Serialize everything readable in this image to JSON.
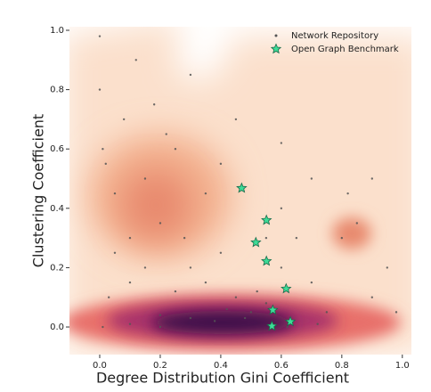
{
  "chart_data": {
    "type": "scatter",
    "xlabel": "Degree Distribution Gini Coefficient",
    "ylabel": "Clustering Coefficient",
    "xlim": [
      -0.1,
      1.03
    ],
    "ylim": [
      -0.093,
      1.012
    ],
    "xticks": [
      {
        "value": 0,
        "label": "0.0"
      },
      {
        "value": 0.2,
        "label": "0.2"
      },
      {
        "value": 0.4,
        "label": "0.4"
      },
      {
        "value": 0.6,
        "label": "0.6"
      },
      {
        "value": 0.8,
        "label": "0.8"
      },
      {
        "value": 1,
        "label": "1.0"
      }
    ],
    "yticks": [
      {
        "value": 0,
        "label": "0.0"
      },
      {
        "value": 0.2,
        "label": "0.2"
      },
      {
        "value": 0.4,
        "label": "0.4"
      },
      {
        "value": 0.6,
        "label": "0.6"
      },
      {
        "value": 0.8,
        "label": "0.8"
      },
      {
        "value": 1,
        "label": "1.0"
      }
    ],
    "legend": "upper right",
    "series": [
      {
        "name": "Network Repository",
        "color": "#555555",
        "marker": "dot",
        "x": [
          0.0,
          0.0,
          0.01,
          0.02,
          0.05,
          0.1,
          0.15,
          0.2,
          0.25,
          0.3,
          0.35,
          0.4,
          0.45,
          0.5,
          0.55,
          0.6,
          0.7,
          0.75,
          0.8,
          0.85,
          0.9,
          0.95,
          0.12,
          0.18,
          0.3,
          0.45,
          0.6,
          0.7,
          0.82,
          0.05,
          0.03,
          0.2,
          0.3,
          0.38,
          0.42,
          0.48,
          0.25,
          0.15,
          0.6,
          0.35,
          0.22,
          0.08,
          0.1,
          0.65,
          0.9,
          0.98,
          0.55,
          0.4,
          0.28,
          0.72,
          0.01,
          0.1,
          0.2,
          0.62,
          0.52
        ],
        "y": [
          0.98,
          0.8,
          0.6,
          0.55,
          0.45,
          0.3,
          0.5,
          0.35,
          0.6,
          0.2,
          0.15,
          0.25,
          0.1,
          0.05,
          0.08,
          0.2,
          0.15,
          0.05,
          0.3,
          0.35,
          0.1,
          0.2,
          0.9,
          0.75,
          0.85,
          0.7,
          0.62,
          0.5,
          0.45,
          0.25,
          0.1,
          0.04,
          0.03,
          0.02,
          0.06,
          0.03,
          0.12,
          0.2,
          0.4,
          0.45,
          0.65,
          0.7,
          0.15,
          0.3,
          0.5,
          0.05,
          0.3,
          0.55,
          0.3,
          0.01,
          0.0,
          0.01,
          0.0,
          0.0,
          0.12
        ]
      },
      {
        "name": "Open Graph Benchmark",
        "color": "#3ddc97",
        "marker": "star",
        "x": [
          0.469,
          0.551,
          0.516,
          0.551,
          0.616,
          0.572,
          0.63,
          0.569
        ],
        "y": [
          0.468,
          0.36,
          0.285,
          0.222,
          0.129,
          0.057,
          0.018,
          0.003
        ]
      }
    ]
  }
}
